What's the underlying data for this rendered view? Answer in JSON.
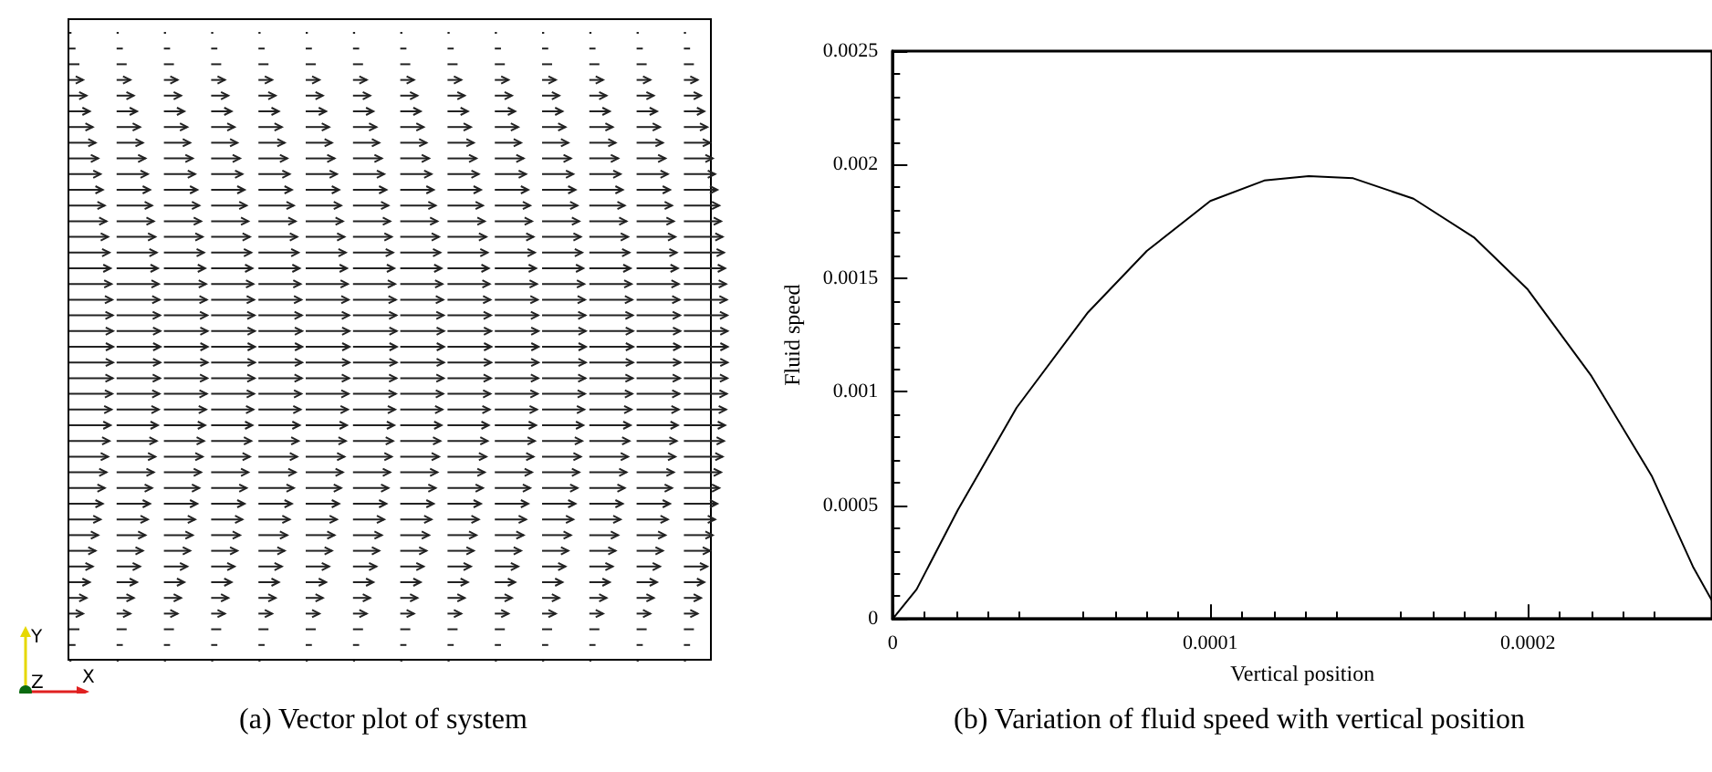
{
  "chart_data": [
    {
      "type": "other",
      "annotations": [
        "(a) Vector plot of system",
        "Y",
        "Z",
        "X"
      ]
    },
    {
      "type": "line",
      "xlabel": "Vertical position",
      "ylabel": "Fluid speed",
      "annotations": [
        "(b) Variation of fluid speed with vertical position"
      ],
      "x": [
        0,
        7.5e-06,
        2.05e-05,
        3.9e-05,
        6.15e-05,
        8e-05,
        0.0001,
        0.000117,
        0.000131,
        0.000145,
        0.000164,
        0.000183,
        0.0002,
        0.00022,
        0.000239,
        0.000252,
        0.000258
      ],
      "series": [
        {
          "color": "#000000",
          "values": [
            0,
            0.00013,
            0.00048,
            0.00093,
            0.00135,
            0.00162,
            0.00184,
            0.00193,
            0.00195,
            0.00194,
            0.00185,
            0.00168,
            0.00145,
            0.00107,
            0.00063,
            0.00023,
            8e-05
          ]
        }
      ],
      "xlim": [
        0,
        0.000258
      ],
      "xticks": [
        0,
        0.0001,
        0.0002
      ],
      "ylim": [
        0,
        0.0025
      ],
      "yticks": [
        0,
        0.0005,
        0.001,
        0.0015,
        0.002,
        0.0025
      ],
      "grid": false,
      "marker": "none",
      "line_style": "solid"
    }
  ]
}
